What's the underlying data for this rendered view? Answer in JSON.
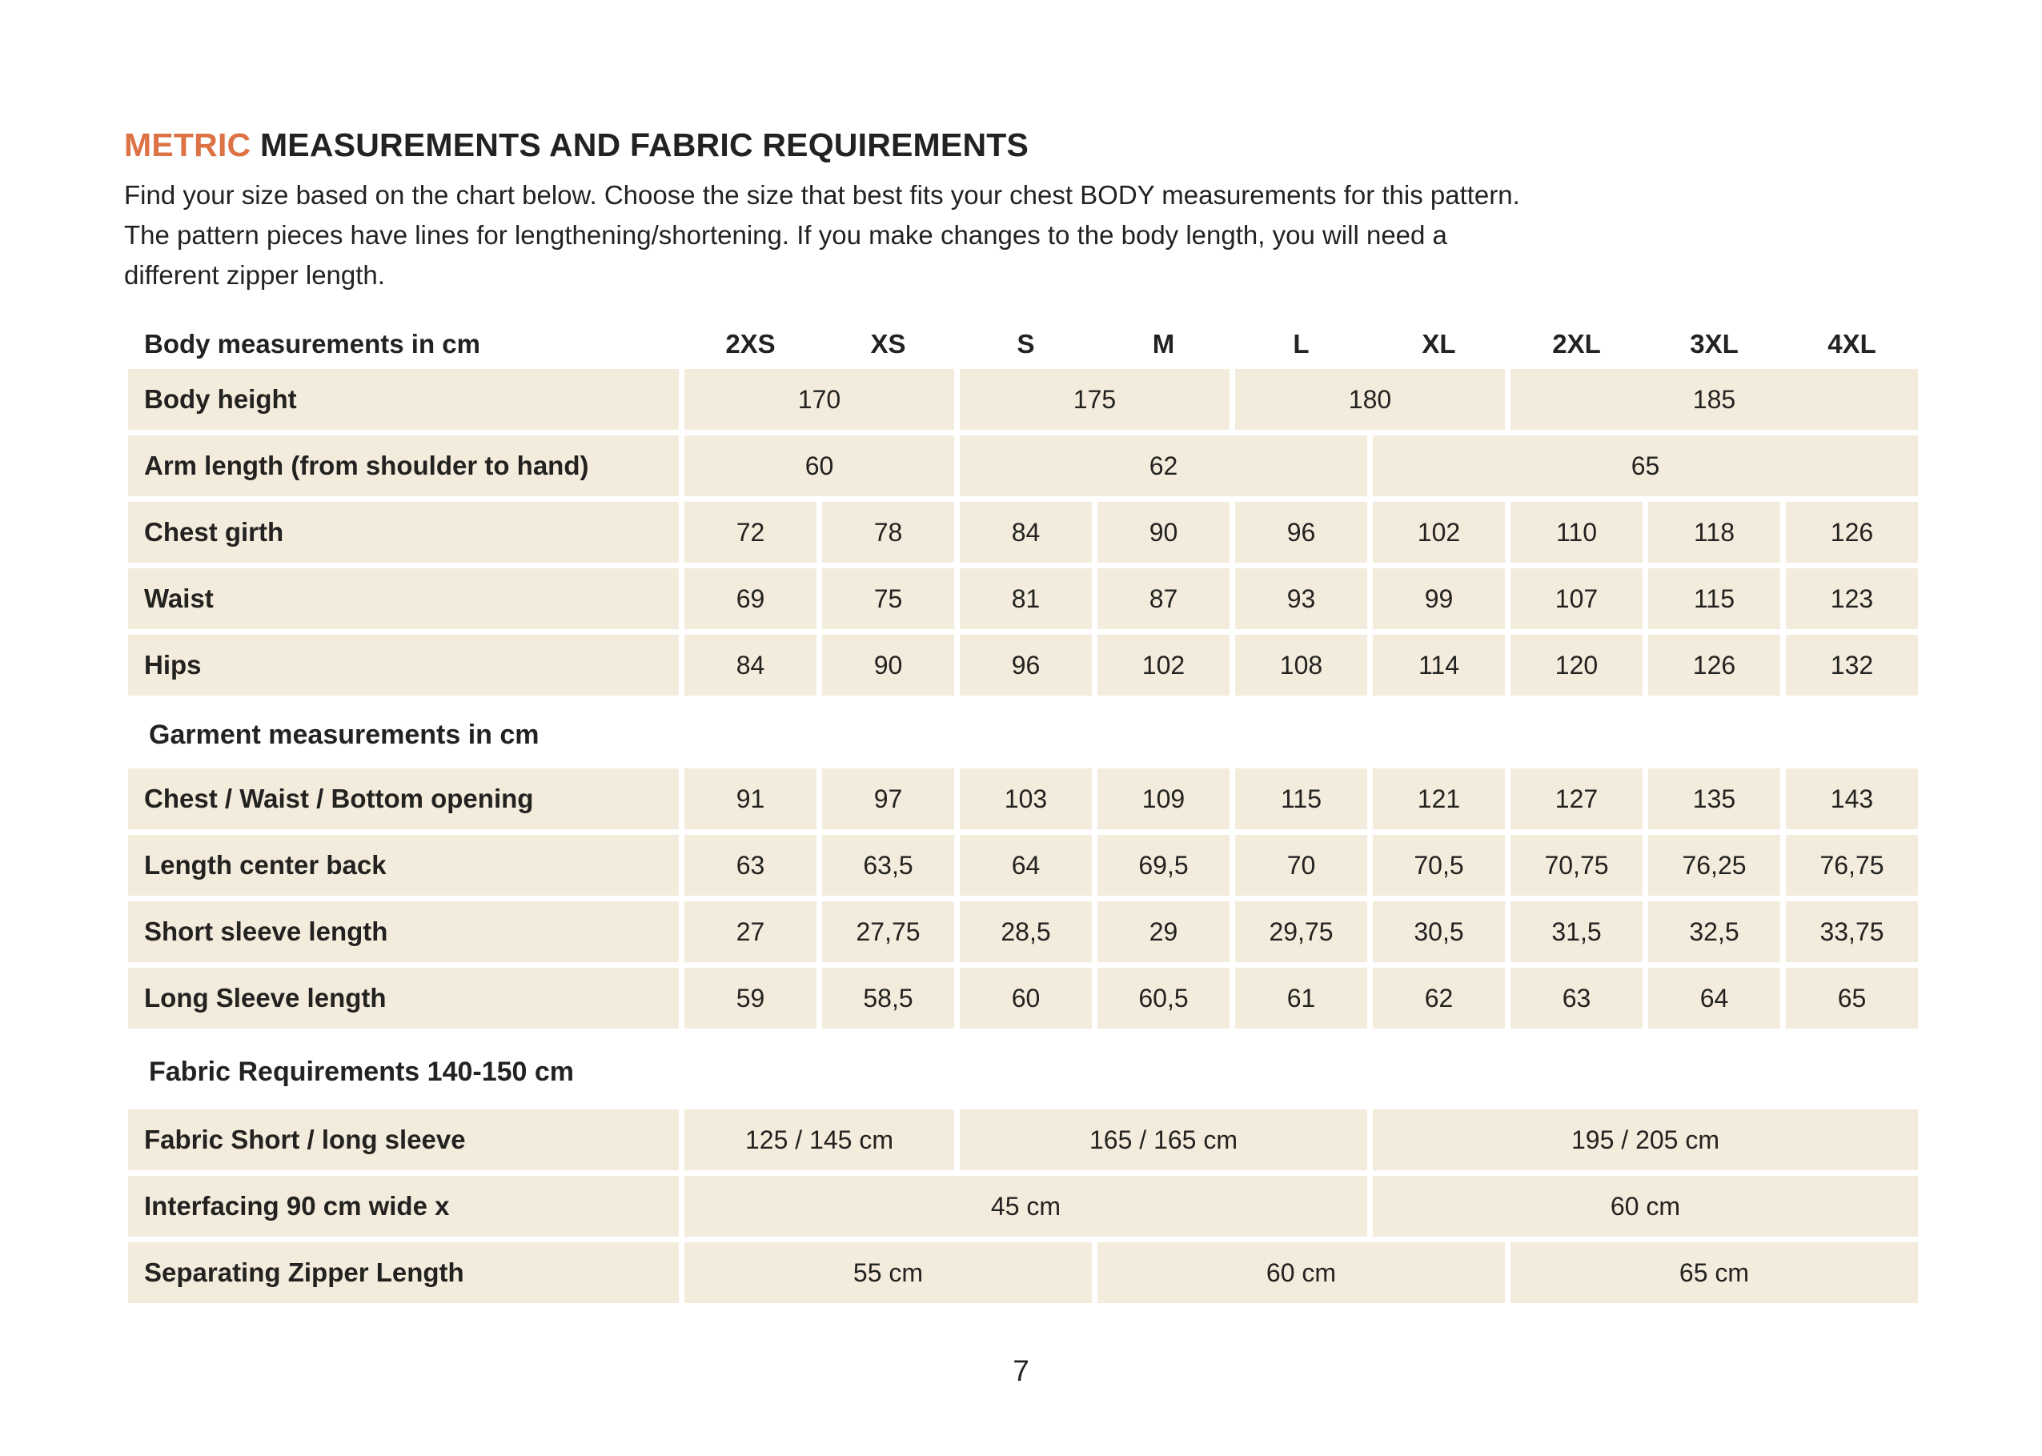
{
  "colors": {
    "accent_orange": "#dd7244",
    "cell_beige": "#f3ecdd",
    "text": "#232220"
  },
  "header": {
    "title_accent": "METRIC",
    "title_rest": " MEASUREMENTS AND FABRIC REQUIREMENTS"
  },
  "intro": {
    "lines": [
      "Find your size based on the chart below. Choose the size that best fits your chest BODY measurements for this pattern.",
      "The pattern pieces have lines for lengthening/shortening. If you make changes to the body length, you will need a",
      "different zipper length."
    ]
  },
  "table": {
    "header_label": "Body measurements in cm",
    "sizes": [
      "2XS",
      "XS",
      "S",
      "M",
      "L",
      "XL",
      "2XL",
      "3XL",
      "4XL"
    ],
    "rows": [
      {
        "type": "data",
        "label": "Body height",
        "cells": [
          {
            "value": "170",
            "span": 2
          },
          {
            "value": "175",
            "span": 2
          },
          {
            "value": "180",
            "span": 2
          },
          {
            "value": "185",
            "span": 3
          }
        ]
      },
      {
        "type": "data",
        "label": "Arm length (from shoulder to hand)",
        "cells": [
          {
            "value": "60",
            "span": 2
          },
          {
            "value": "62",
            "span": 3
          },
          {
            "value": "65",
            "span": 4
          }
        ]
      },
      {
        "type": "data",
        "label": "Chest girth",
        "cells": [
          {
            "value": "72"
          },
          {
            "value": "78"
          },
          {
            "value": "84"
          },
          {
            "value": "90"
          },
          {
            "value": "96"
          },
          {
            "value": "102"
          },
          {
            "value": "110"
          },
          {
            "value": "118"
          },
          {
            "value": "126"
          }
        ]
      },
      {
        "type": "data",
        "label": "Waist",
        "cells": [
          {
            "value": "69"
          },
          {
            "value": "75"
          },
          {
            "value": "81"
          },
          {
            "value": "87"
          },
          {
            "value": "93"
          },
          {
            "value": "99"
          },
          {
            "value": "107"
          },
          {
            "value": "115"
          },
          {
            "value": "123"
          }
        ]
      },
      {
        "type": "data",
        "label": "Hips",
        "cells": [
          {
            "value": "84"
          },
          {
            "value": "90"
          },
          {
            "value": "96"
          },
          {
            "value": "102"
          },
          {
            "value": "108"
          },
          {
            "value": "114"
          },
          {
            "value": "120"
          },
          {
            "value": "126"
          },
          {
            "value": "132"
          }
        ]
      },
      {
        "type": "section",
        "label": "Garment measurements in cm",
        "tall": false
      },
      {
        "type": "data",
        "label": "Chest / Waist / Bottom opening",
        "cells": [
          {
            "value": "91"
          },
          {
            "value": "97"
          },
          {
            "value": "103"
          },
          {
            "value": "109"
          },
          {
            "value": "115"
          },
          {
            "value": "121"
          },
          {
            "value": "127"
          },
          {
            "value": "135"
          },
          {
            "value": "143"
          }
        ]
      },
      {
        "type": "data",
        "label": "Length center back",
        "cells": [
          {
            "value": "63"
          },
          {
            "value": "63,5"
          },
          {
            "value": "64"
          },
          {
            "value": "69,5"
          },
          {
            "value": "70"
          },
          {
            "value": "70,5"
          },
          {
            "value": "70,75"
          },
          {
            "value": "76,25"
          },
          {
            "value": "76,75"
          }
        ]
      },
      {
        "type": "data",
        "label": "Short sleeve length",
        "cells": [
          {
            "value": "27"
          },
          {
            "value": "27,75"
          },
          {
            "value": "28,5"
          },
          {
            "value": "29"
          },
          {
            "value": "29,75"
          },
          {
            "value": "30,5"
          },
          {
            "value": "31,5"
          },
          {
            "value": "32,5"
          },
          {
            "value": "33,75"
          }
        ]
      },
      {
        "type": "data",
        "label": "Long Sleeve length",
        "cells": [
          {
            "value": "59"
          },
          {
            "value": "58,5"
          },
          {
            "value": "60"
          },
          {
            "value": "60,5"
          },
          {
            "value": "61"
          },
          {
            "value": "62"
          },
          {
            "value": "63"
          },
          {
            "value": "64"
          },
          {
            "value": "65"
          }
        ]
      },
      {
        "type": "section",
        "label": "Fabric Requirements 140-150 cm",
        "tall": true
      },
      {
        "type": "data",
        "label": "Fabric Short / long sleeve",
        "cells": [
          {
            "value": "125 / 145 cm",
            "span": 2
          },
          {
            "value": "165 / 165 cm",
            "span": 3
          },
          {
            "value": "195 / 205 cm",
            "span": 4
          }
        ]
      },
      {
        "type": "data",
        "label": "Interfacing  90 cm wide x",
        "cells": [
          {
            "value": "45 cm",
            "span": 5
          },
          {
            "value": "60 cm",
            "span": 4
          }
        ]
      },
      {
        "type": "data",
        "label": "Separating Zipper Length",
        "cells": [
          {
            "value": "55 cm",
            "span": 3
          },
          {
            "value": "60 cm",
            "span": 3
          },
          {
            "value": "65 cm",
            "span": 3
          }
        ]
      }
    ]
  },
  "footer": {
    "page_number": "7"
  }
}
